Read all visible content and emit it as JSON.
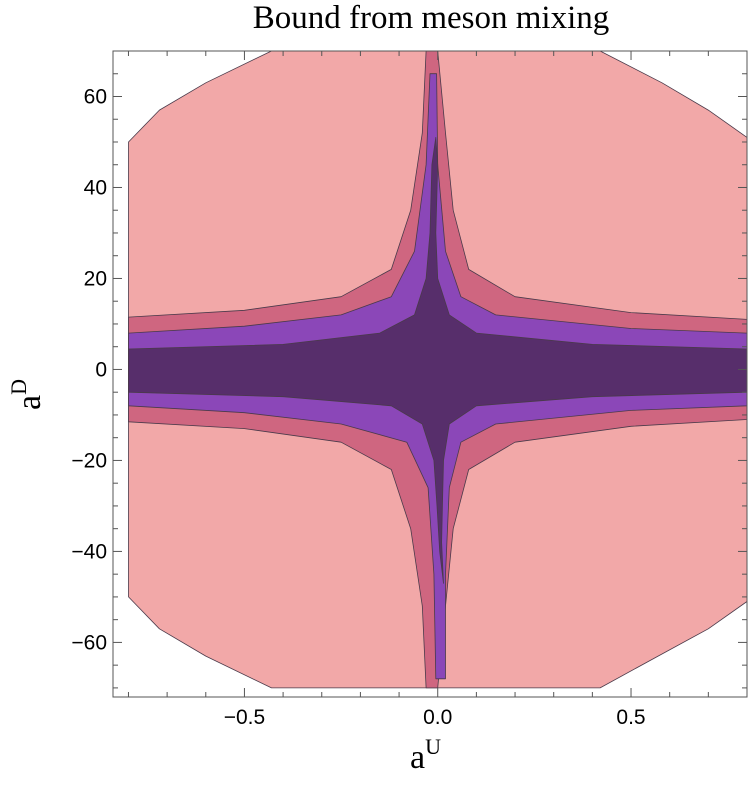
{
  "chart_data": {
    "type": "contour",
    "title": "Bound from meson mixing",
    "xlabel": {
      "base": "a",
      "sup": "U"
    },
    "ylabel": {
      "base": "a",
      "sup": "D"
    },
    "xlim": [
      -0.84,
      0.8
    ],
    "ylim": [
      -72,
      70
    ],
    "xticks": [
      {
        "value": -0.5,
        "label": "−0.5"
      },
      {
        "value": 0.0,
        "label": "0.0"
      },
      {
        "value": 0.5,
        "label": "0.5"
      }
    ],
    "yticks": [
      {
        "value": -60,
        "label": "−60"
      },
      {
        "value": -40,
        "label": "−40"
      },
      {
        "value": -20,
        "label": "−20"
      },
      {
        "value": 0,
        "label": "0"
      },
      {
        "value": 20,
        "label": "20"
      },
      {
        "value": 40,
        "label": "40"
      },
      {
        "value": 60,
        "label": "60"
      }
    ],
    "minor_xticks": [
      -0.8,
      -0.7,
      -0.6,
      -0.4,
      -0.3,
      -0.2,
      -0.1,
      0.1,
      0.2,
      0.3,
      0.4,
      0.6,
      0.7,
      0.8
    ],
    "minor_yticks": [
      -70,
      -65,
      -55,
      -50,
      -45,
      -35,
      -30,
      -25,
      -15,
      -10,
      -5,
      5,
      10,
      15,
      25,
      30,
      35,
      45,
      50,
      55,
      65,
      70
    ],
    "levels": [
      {
        "color": "#f2a8a8",
        "points": [
          [
            -0.43,
            -70
          ],
          [
            -0.6,
            -63
          ],
          [
            -0.72,
            -57
          ],
          [
            -0.8,
            -50
          ],
          [
            -0.8,
            50
          ],
          [
            -0.72,
            57
          ],
          [
            -0.6,
            63
          ],
          [
            -0.43,
            70
          ],
          [
            0.42,
            70
          ],
          [
            0.58,
            63
          ],
          [
            0.7,
            57
          ],
          [
            0.8,
            51
          ],
          [
            0.8,
            -51
          ],
          [
            0.7,
            -57
          ],
          [
            0.57,
            -63
          ],
          [
            0.42,
            -70
          ]
        ]
      },
      {
        "color": "#cf6680",
        "points": [
          [
            -0.8,
            11.5
          ],
          [
            -0.5,
            13
          ],
          [
            -0.25,
            16
          ],
          [
            -0.12,
            22
          ],
          [
            -0.07,
            35
          ],
          [
            -0.04,
            52
          ],
          [
            -0.03,
            70
          ],
          [
            0.0,
            70
          ],
          [
            0.02,
            52
          ],
          [
            0.04,
            35
          ],
          [
            0.08,
            22
          ],
          [
            0.2,
            16
          ],
          [
            0.5,
            12.5
          ],
          [
            0.8,
            11
          ],
          [
            0.8,
            -11
          ],
          [
            0.5,
            -12.5
          ],
          [
            0.2,
            -16
          ],
          [
            0.08,
            -22
          ],
          [
            0.04,
            -35
          ],
          [
            0.02,
            -52
          ],
          [
            0.0,
            -70
          ],
          [
            -0.03,
            -70
          ],
          [
            -0.04,
            -52
          ],
          [
            -0.07,
            -35
          ],
          [
            -0.12,
            -22
          ],
          [
            -0.25,
            -16
          ],
          [
            -0.5,
            -13
          ],
          [
            -0.8,
            -11.5
          ]
        ]
      },
      {
        "color": "#8b47b8",
        "points": [
          [
            -0.8,
            8
          ],
          [
            -0.5,
            9.5
          ],
          [
            -0.25,
            12
          ],
          [
            -0.12,
            16
          ],
          [
            -0.06,
            26
          ],
          [
            -0.03,
            45
          ],
          [
            -0.02,
            65
          ],
          [
            -0.003,
            65
          ],
          [
            0.0,
            45
          ],
          [
            0.02,
            26
          ],
          [
            0.06,
            16
          ],
          [
            0.15,
            12
          ],
          [
            0.5,
            9
          ],
          [
            0.8,
            8
          ],
          [
            0.8,
            -8
          ],
          [
            0.5,
            -9
          ],
          [
            0.15,
            -12
          ],
          [
            0.06,
            -16
          ],
          [
            0.03,
            -26
          ],
          [
            0.02,
            -45
          ],
          [
            0.02,
            -68
          ],
          [
            -0.005,
            -68
          ],
          [
            -0.01,
            -45
          ],
          [
            -0.025,
            -26
          ],
          [
            -0.08,
            -16
          ],
          [
            -0.25,
            -12
          ],
          [
            -0.5,
            -9.5
          ],
          [
            -0.8,
            -8
          ]
        ]
      },
      {
        "color": "#572e6b",
        "points": [
          [
            -0.8,
            4.5
          ],
          [
            -0.4,
            5.5
          ],
          [
            -0.15,
            8
          ],
          [
            -0.06,
            12
          ],
          [
            -0.03,
            20
          ],
          [
            -0.02,
            30
          ],
          [
            -0.015,
            45
          ],
          [
            -0.005,
            51
          ],
          [
            0.0,
            45
          ],
          [
            -0.005,
            30
          ],
          [
            0.0,
            20
          ],
          [
            0.03,
            12
          ],
          [
            0.1,
            8
          ],
          [
            0.4,
            5.5
          ],
          [
            0.8,
            4.5
          ],
          [
            0.8,
            -5
          ],
          [
            0.4,
            -6
          ],
          [
            0.1,
            -8
          ],
          [
            0.03,
            -12
          ],
          [
            0.015,
            -20
          ],
          [
            0.012,
            -30
          ],
          [
            0.01,
            -38
          ],
          [
            0.015,
            -47
          ],
          [
            0.005,
            -40
          ],
          [
            -0.002,
            -30
          ],
          [
            -0.01,
            -20
          ],
          [
            -0.04,
            -12
          ],
          [
            -0.12,
            -8
          ],
          [
            -0.4,
            -6
          ],
          [
            -0.8,
            -5
          ]
        ]
      }
    ]
  }
}
